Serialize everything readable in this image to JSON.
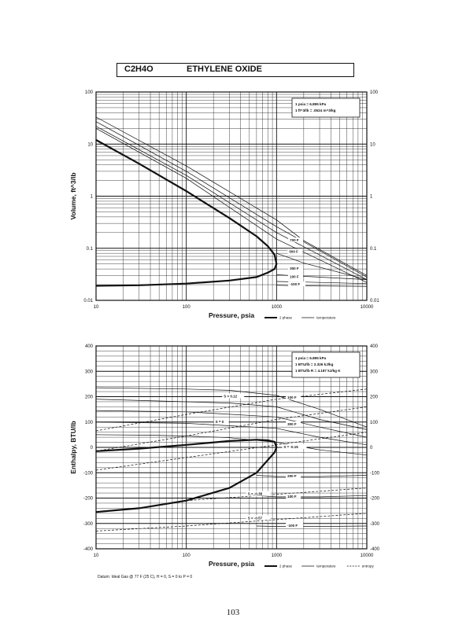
{
  "header": {
    "formula": "C2H4O",
    "name": "ETHYLENE OXIDE"
  },
  "page_number": "103",
  "footnote": "Datum: Ideal Gas @ 77 F (25 C), H = 0, S = 0 to P = 0",
  "chart_data": [
    {
      "type": "line",
      "xlabel": "Pressure,  psia",
      "ylabel": "Volume, ft^3/lb",
      "xscale": "log",
      "yscale": "log",
      "xlim": [
        10,
        10000
      ],
      "ylim": [
        0.01,
        100
      ],
      "x_ticks": [
        "10",
        "100",
        "1000",
        "10000"
      ],
      "y_ticks": [
        "0.01",
        "0.1",
        "1",
        "10",
        "100"
      ],
      "grid": true,
      "conversion_note": [
        "1 psia  =  6.895 kPa",
        "1 ft^3/lb  =  .0624 m^3/kg"
      ],
      "legend": [
        {
          "label": "2 phase",
          "style": "thick"
        },
        {
          "label": "temperature",
          "style": "thin"
        }
      ],
      "series": [
        {
          "role": "two-phase",
          "x": [
            10,
            30,
            100,
            300,
            600,
            800,
            950,
            1000,
            950,
            800,
            600,
            300,
            100,
            30,
            10
          ],
          "y": [
            12,
            4.2,
            1.25,
            0.38,
            0.17,
            0.11,
            0.075,
            0.05,
            0.04,
            0.034,
            0.028,
            0.024,
            0.021,
            0.0195,
            0.019
          ]
        },
        {
          "role": "isotherm",
          "label": "",
          "x": [
            10,
            100,
            1000,
            10000
          ],
          "y": [
            20,
            2.2,
            0.15,
            0.022
          ]
        },
        {
          "role": "isotherm",
          "label": "",
          "x": [
            10,
            100,
            1000,
            10000
          ],
          "y": [
            22,
            2.5,
            0.2,
            0.025
          ]
        },
        {
          "role": "isotherm",
          "label": "",
          "x": [
            10,
            100,
            1000,
            10000
          ],
          "y": [
            27,
            3.0,
            0.26,
            0.028
          ]
        },
        {
          "role": "isotherm",
          "label": "700 F",
          "x": [
            10,
            100,
            1000,
            2000,
            10000
          ],
          "y": [
            33,
            3.8,
            0.35,
            0.14,
            0.03
          ]
        },
        {
          "role": "isotherm",
          "label": "500 F",
          "x": [
            1000,
            1400,
            2000,
            10000
          ],
          "y": [
            0.08,
            0.065,
            0.052,
            0.025
          ]
        },
        {
          "role": "isotherm",
          "label": "300 F",
          "x": [
            1000,
            2000,
            10000
          ],
          "y": [
            0.031,
            0.029,
            0.025
          ]
        },
        {
          "role": "isotherm",
          "label": "100 F",
          "x": [
            1000,
            2000,
            10000
          ],
          "y": [
            0.023,
            0.0225,
            0.021
          ]
        },
        {
          "role": "isotherm",
          "label": "-100 F",
          "x": [
            1000,
            2000,
            10000
          ],
          "y": [
            0.0195,
            0.019,
            0.0185
          ]
        }
      ],
      "curve_labels": [
        {
          "text": "700 F",
          "x": 1400,
          "y": 0.14
        },
        {
          "text": "500 F",
          "x": 1380,
          "y": 0.085
        },
        {
          "text": "300 F",
          "x": 1400,
          "y": 0.04
        },
        {
          "text": "100 F",
          "x": 1400,
          "y": 0.028
        },
        {
          "text": "-100 F",
          "x": 1400,
          "y": 0.02
        }
      ]
    },
    {
      "type": "line",
      "xlabel": "Pressure,  psia",
      "ylabel": "Enthalpy, BTU/lb",
      "xscale": "log",
      "yscale": "linear",
      "xlim": [
        10,
        10000
      ],
      "ylim": [
        -400,
        400
      ],
      "x_ticks": [
        "10",
        "100",
        "1000",
        "10000"
      ],
      "y_ticks": [
        "-400",
        "-300",
        "-200",
        "-100",
        "0",
        "100",
        "200",
        "300",
        "400"
      ],
      "grid": true,
      "conversion_note": [
        "1 psia  =  6.895 kPa",
        "1 BTU/lb  =  2.326 kJ/kg",
        "1 BTU/lb R  =  4.187 kJ/kg K"
      ],
      "legend": [
        {
          "label": "2 phase",
          "style": "thick"
        },
        {
          "label": "temperature",
          "style": "thin"
        },
        {
          "label": "entropy",
          "style": "dashed"
        }
      ],
      "series": [
        {
          "role": "two-phase",
          "x": [
            10,
            30,
            100,
            300,
            600,
            800,
            950,
            1000,
            950,
            800,
            600,
            300,
            100,
            30,
            10
          ],
          "y": [
            -15,
            -5,
            10,
            25,
            30,
            28,
            22,
            0,
            -20,
            -50,
            -100,
            -160,
            -210,
            -240,
            -255
          ]
        },
        {
          "role": "isotherm",
          "label": "",
          "x": [
            10,
            100,
            300,
            1000,
            3000,
            10000
          ],
          "y": [
            235,
            230,
            225,
            205,
            150,
            80
          ]
        },
        {
          "role": "isotherm",
          "label": "",
          "x": [
            10,
            100,
            300,
            1000,
            3000,
            10000
          ],
          "y": [
            190,
            180,
            175,
            160,
            110,
            70
          ]
        },
        {
          "role": "isotherm",
          "label": "",
          "x": [
            10,
            100,
            1000,
            3000,
            10000
          ],
          "y": [
            145,
            140,
            120,
            80,
            40
          ]
        },
        {
          "role": "isotherm",
          "label": "",
          "x": [
            10,
            100,
            1000,
            3000,
            10000
          ],
          "y": [
            100,
            95,
            75,
            40,
            10
          ]
        },
        {
          "role": "isotherm",
          "label": "",
          "x": [
            10,
            40,
            100,
            300,
            1000,
            3000,
            10000
          ],
          "y": [
            50,
            48,
            45,
            38,
            20,
            -10,
            -30
          ]
        },
        {
          "role": "isotherm",
          "label": "200 F",
          "x": [
            600,
            1000,
            3000,
            10000
          ],
          "y": [
            -110,
            -115,
            -115,
            -110
          ]
        },
        {
          "role": "isotherm",
          "label": "100 F",
          "x": [
            600,
            1000,
            3000,
            10000
          ],
          "y": [
            -190,
            -195,
            -195,
            -190
          ]
        },
        {
          "role": "isotherm",
          "label": "-100 F",
          "x": [
            600,
            1000,
            3000,
            10000
          ],
          "y": [
            -310,
            -312,
            -312,
            -310
          ]
        },
        {
          "role": "entropy",
          "label": "S = 0.12",
          "x": [
            10,
            100,
            1000,
            10000
          ],
          "y": [
            65,
            130,
            190,
            230
          ]
        },
        {
          "role": "entropy",
          "label": "S = 0",
          "x": [
            10,
            100,
            1000,
            10000
          ],
          "y": [
            -15,
            45,
            110,
            160
          ]
        },
        {
          "role": "entropy",
          "label": "S = -0.15",
          "x": [
            10,
            100,
            1000,
            10000
          ],
          "y": [
            -90,
            -40,
            10,
            60
          ]
        },
        {
          "role": "entropy",
          "label": "S = -0.38",
          "x": [
            100,
            1000,
            10000
          ],
          "y": [
            -210,
            -185,
            -160
          ]
        },
        {
          "role": "entropy",
          "label": "S = -0.57",
          "x": [
            10,
            100,
            1000,
            10000
          ],
          "y": [
            -330,
            -310,
            -285,
            -260
          ]
        }
      ],
      "curve_labels": [
        {
          "text": "S = 0.12",
          "x": 260,
          "y": 200
        },
        {
          "text": "S = 0",
          "x": 210,
          "y": 100
        },
        {
          "text": "S = -0.15",
          "x": 1200,
          "y": 0
        },
        {
          "text": "S = -0.38",
          "x": 480,
          "y": -185
        },
        {
          "text": "S = -0.57",
          "x": 480,
          "y": -280
        },
        {
          "text": "100 F",
          "x": 1320,
          "y": 195
        },
        {
          "text": "300 F",
          "x": 1320,
          "y": 90
        },
        {
          "text": "200 F",
          "x": 1320,
          "y": -115
        },
        {
          "text": "100 F",
          "x": 1320,
          "y": -195
        },
        {
          "text": "-100 F",
          "x": 1320,
          "y": -310
        }
      ]
    }
  ]
}
